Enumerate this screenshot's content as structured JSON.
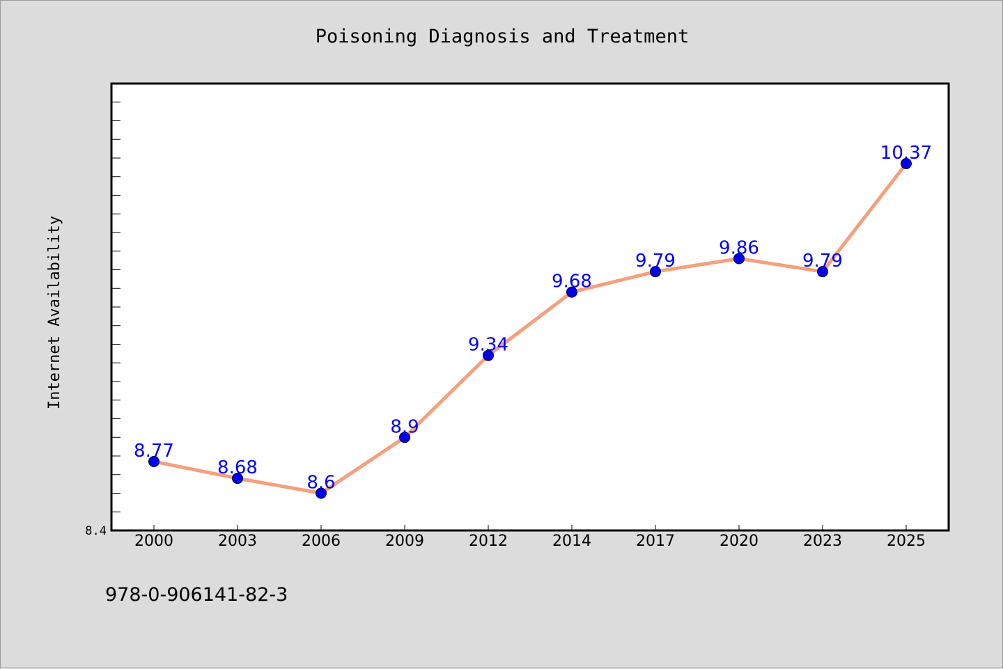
{
  "chart_data": {
    "type": "line",
    "title": "Poisoning Diagnosis and Treatment",
    "ylabel": "Internet Availability",
    "xlabel": "",
    "categories": [
      "2000",
      "2003",
      "2006",
      "2009",
      "2012",
      "2014",
      "2017",
      "2020",
      "2023",
      "2025"
    ],
    "values": [
      8.77,
      8.68,
      8.6,
      8.9,
      9.34,
      9.68,
      9.79,
      9.86,
      9.79,
      10.37
    ],
    "data_labels": [
      "8.77",
      "8.68",
      "8.6",
      "8.9",
      "9.34",
      "9.68",
      "9.79",
      "9.86",
      "9.79",
      "10.37"
    ],
    "ylim": [
      8.4,
      10.8
    ],
    "y_tick_labels": [
      {
        "value": 8.4,
        "label": "8.4"
      }
    ],
    "y_minor_step": 0.1,
    "grid": false,
    "line_color": "#f4a07e",
    "marker_color": "#0000ee",
    "label_color": "#0000ff"
  },
  "footer": {
    "code": "978-0-906141-82-3"
  }
}
